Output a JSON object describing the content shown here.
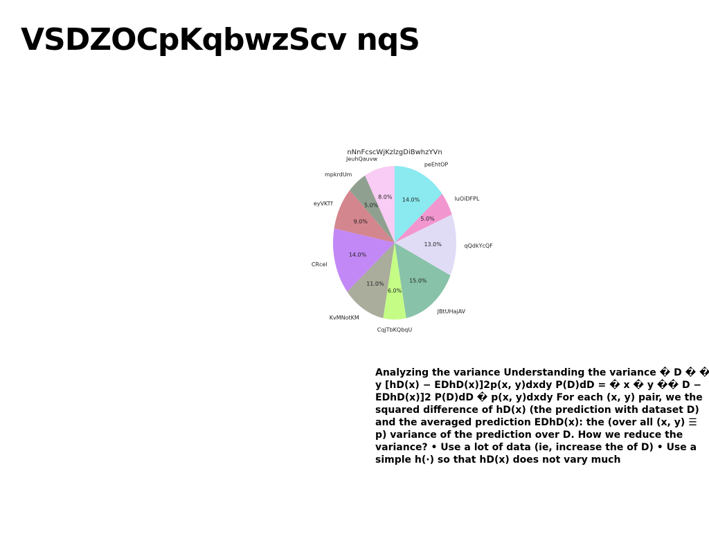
{
  "page": {
    "title": "VSDZOCpKqbwzScv nqS",
    "body_text": "Analyzing the variance Understanding the variance � D � � y [hD(x) − EDhD(x)]2p(x, y)dxdy P(D)dD = � x � y �� D − EDhD(x)]2 P(D)dD � p(x, y)dxdy For each (x, y) pair, we the squared difference of hD(x) (the prediction with dataset D) and the averaged prediction EDhD(x): the (over all (x, y) ☰ p) variance of the prediction over D. How we reduce the variance? • Use a lot of data (ie, increase the of D) • Use a simple h(·) so that hD(x) does not vary much"
  },
  "chart_data": {
    "type": "pie",
    "title": "nNnFcscWjKzlzgDiBwhzYVn",
    "start": "top",
    "direction": "clockwise",
    "slices": [
      {
        "label": "peEhtOP",
        "value": 14.0,
        "pct_label": "14.0%",
        "color": "#8aeaf0"
      },
      {
        "label": "luOiDFPL",
        "value": 5.0,
        "pct_label": "5.0%",
        "color": "#f296d0"
      },
      {
        "label": "qQdkYcQF",
        "value": 13.0,
        "pct_label": "13.0%",
        "color": "#e0dcf6"
      },
      {
        "label": "JBtUHajAV",
        "value": 15.0,
        "pct_label": "15.0%",
        "color": "#88c2a8"
      },
      {
        "label": "CqjTbKQbqU",
        "value": 6.0,
        "pct_label": "6.0%",
        "color": "#c4fc86"
      },
      {
        "label": "KvMNotKM",
        "value": 11.0,
        "pct_label": "11.0%",
        "color": "#aaac9c"
      },
      {
        "label": "CRcel",
        "value": 14.0,
        "pct_label": "14.0%",
        "color": "#c288f6"
      },
      {
        "label": "eyVKTf",
        "value": 9.0,
        "pct_label": "9.0%",
        "color": "#d4868e"
      },
      {
        "label": "mpkrdUm",
        "value": 5.0,
        "pct_label": "5.0%",
        "color": "#90a090"
      },
      {
        "label": "JeuhQauvw",
        "value": 8.0,
        "pct_label": "8.0%",
        "color": "#f8ccf4"
      }
    ]
  }
}
